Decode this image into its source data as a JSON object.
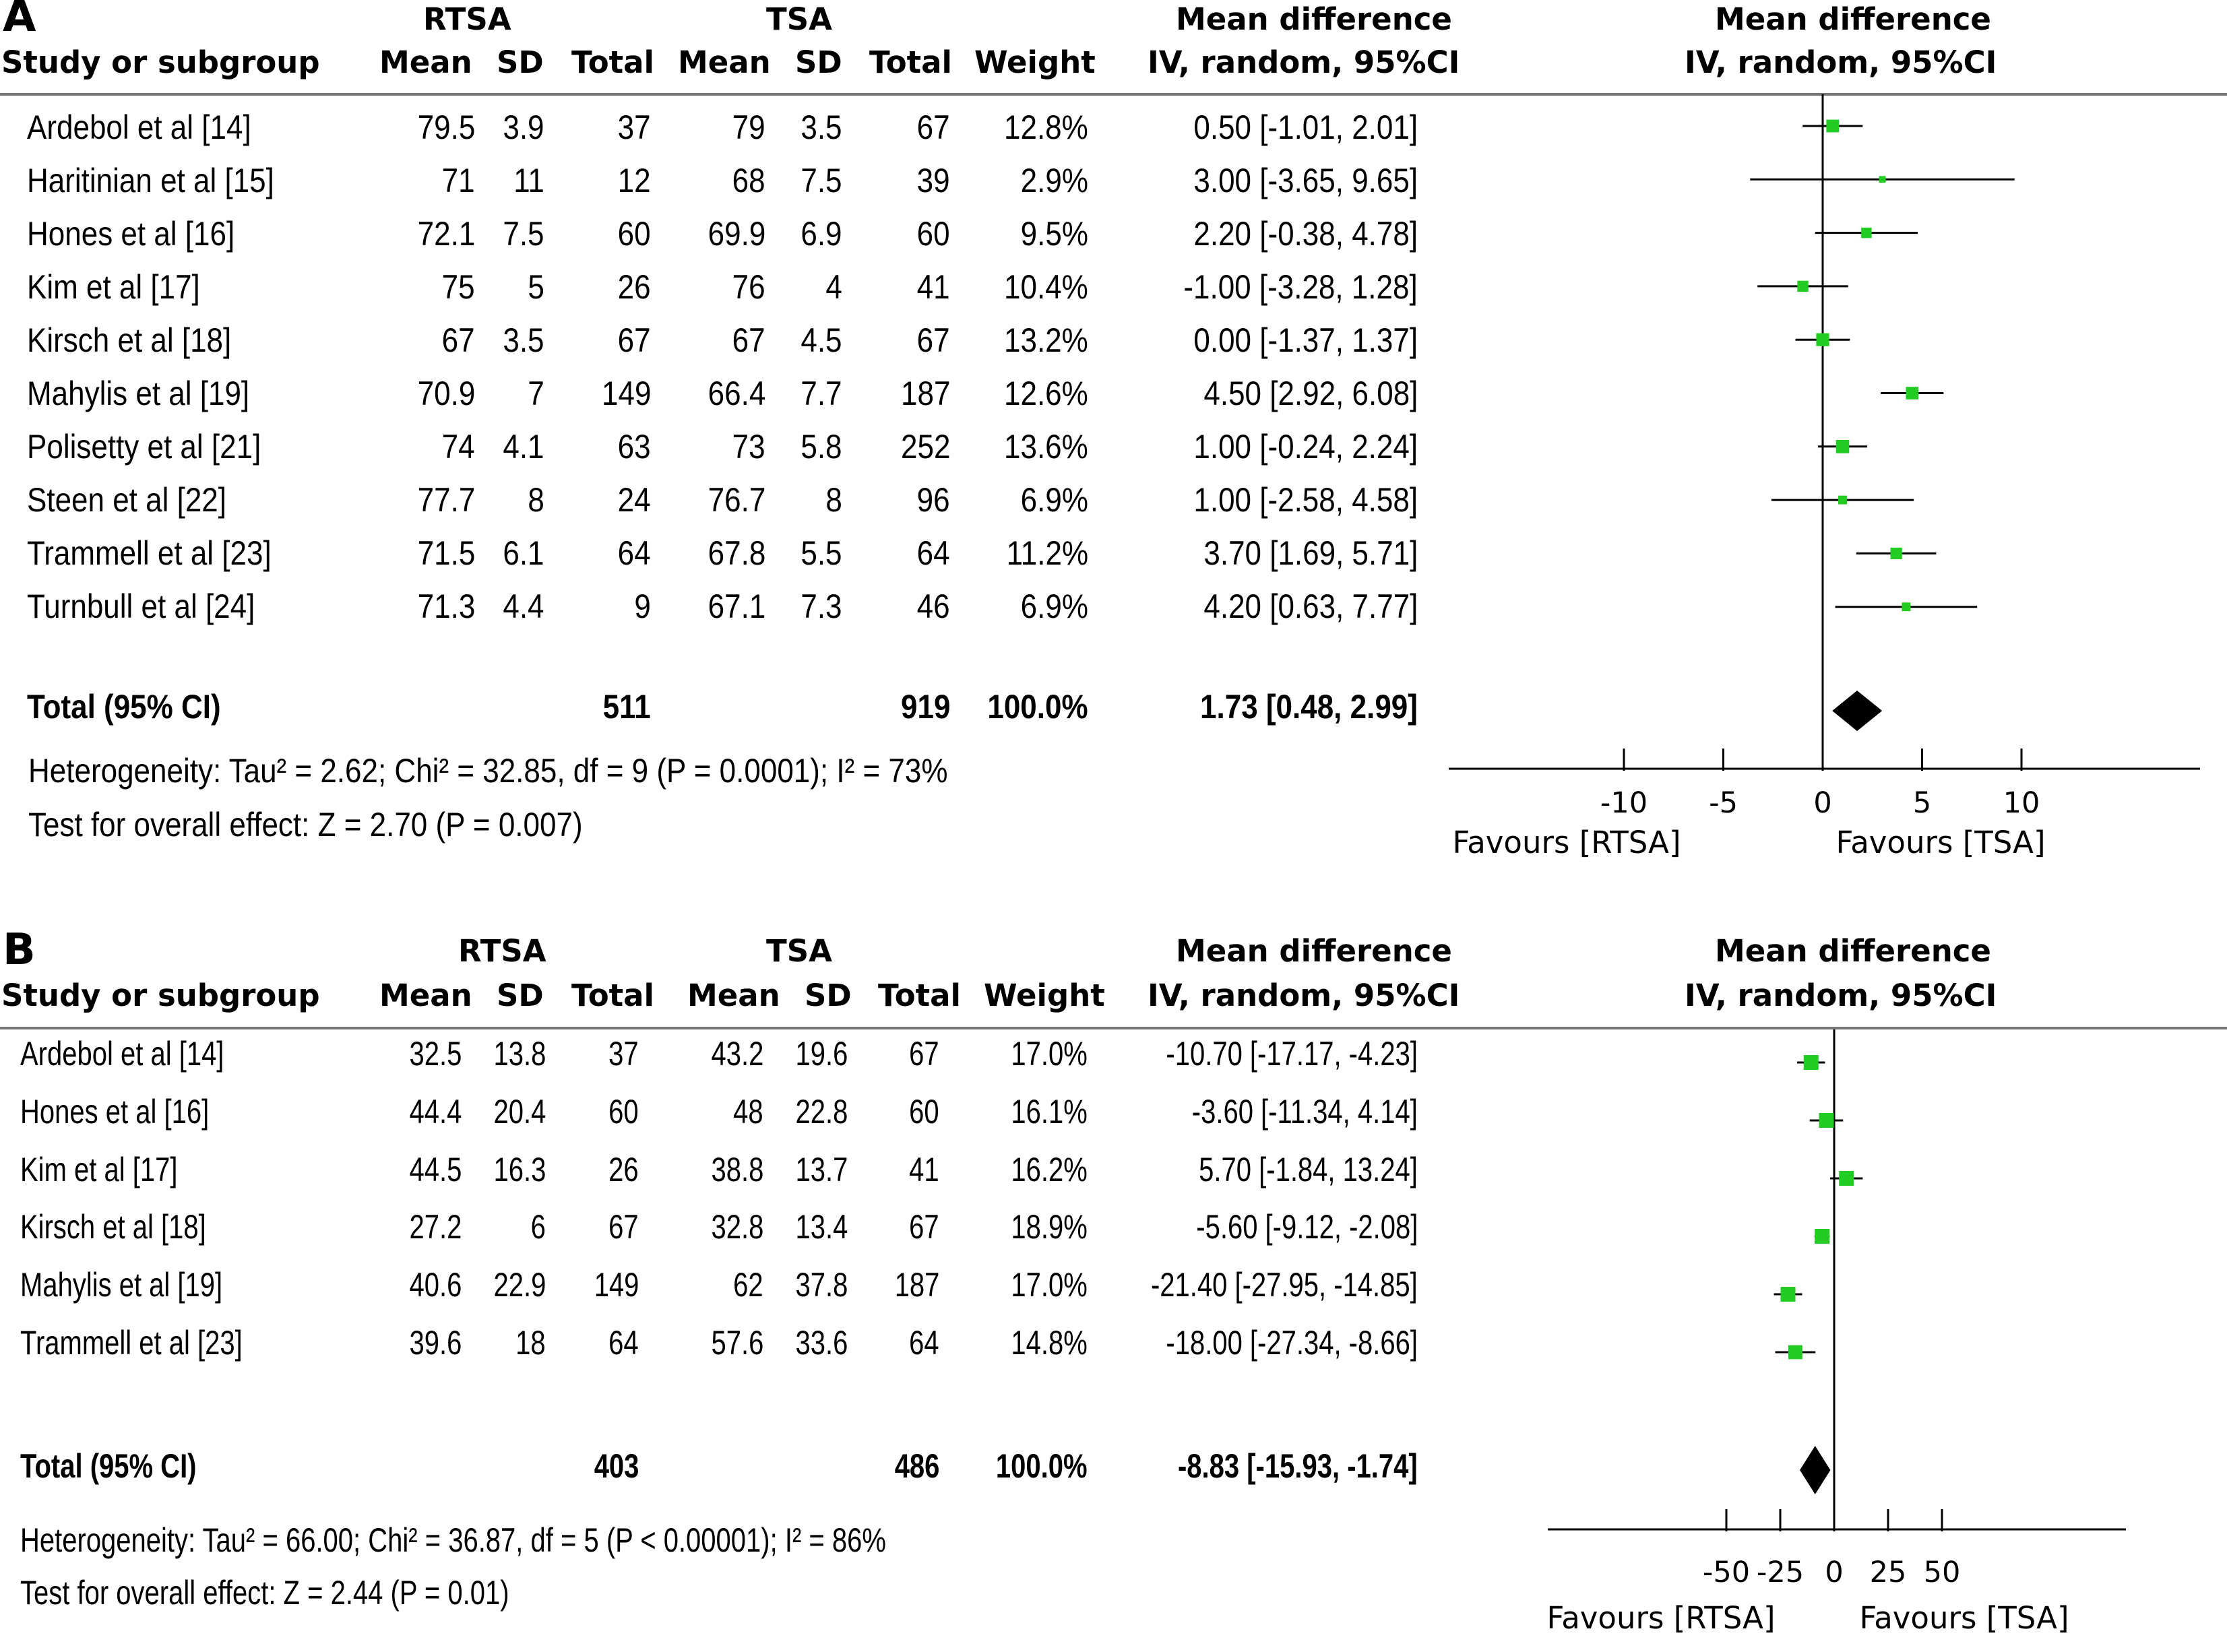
{
  "chart_data": [
    {
      "type": "forest",
      "panel_label": "A",
      "group1": "RTSA",
      "group2": "TSA",
      "columns": {
        "study": "Study or subgroup",
        "mean": "Mean",
        "sd": "SD",
        "total": "Total",
        "weight": "Weight",
        "effect_title": "Mean difference",
        "effect_method": "IV, random, 95%CI"
      },
      "studies": [
        {
          "name": "Ardebol et al  [14]",
          "m1": "79.5",
          "sd1": "3.9",
          "n1": "37",
          "m2": "79",
          "sd2": "3.5",
          "n2": "67",
          "weight": "12.8%",
          "ci": "0.50 [-1.01, 2.01]",
          "md": 0.5,
          "lo": -1.01,
          "hi": 2.01
        },
        {
          "name": "Haritinian et al [15]",
          "m1": "71",
          "sd1": "11",
          "n1": "12",
          "m2": "68",
          "sd2": "7.5",
          "n2": "39",
          "weight": "2.9%",
          "ci": "3.00 [-3.65, 9.65]",
          "md": 3.0,
          "lo": -3.65,
          "hi": 9.65
        },
        {
          "name": "Hones et al [16]",
          "m1": "72.1",
          "sd1": "7.5",
          "n1": "60",
          "m2": "69.9",
          "sd2": "6.9",
          "n2": "60",
          "weight": "9.5%",
          "ci": "2.20 [-0.38, 4.78]",
          "md": 2.2,
          "lo": -0.38,
          "hi": 4.78
        },
        {
          "name": "Kim et al [17]",
          "m1": "75",
          "sd1": "5",
          "n1": "26",
          "m2": "76",
          "sd2": "4",
          "n2": "41",
          "weight": "10.4%",
          "ci": "-1.00 [-3.28, 1.28]",
          "md": -1.0,
          "lo": -3.28,
          "hi": 1.28
        },
        {
          "name": "Kirsch et al [18]",
          "m1": "67",
          "sd1": "3.5",
          "n1": "67",
          "m2": "67",
          "sd2": "4.5",
          "n2": "67",
          "weight": "13.2%",
          "ci": "0.00 [-1.37, 1.37]",
          "md": 0.0,
          "lo": -1.37,
          "hi": 1.37
        },
        {
          "name": "Mahylis et al [19]",
          "m1": "70.9",
          "sd1": "7",
          "n1": "149",
          "m2": "66.4",
          "sd2": "7.7",
          "n2": "187",
          "weight": "12.6%",
          "ci": "4.50 [2.92, 6.08]",
          "md": 4.5,
          "lo": 2.92,
          "hi": 6.08
        },
        {
          "name": "Polisetty et al [21]",
          "m1": "74",
          "sd1": "4.1",
          "n1": "63",
          "m2": "73",
          "sd2": "5.8",
          "n2": "252",
          "weight": "13.6%",
          "ci": "1.00 [-0.24, 2.24]",
          "md": 1.0,
          "lo": -0.24,
          "hi": 2.24
        },
        {
          "name": "Steen et al [22]",
          "m1": "77.7",
          "sd1": "8",
          "n1": "24",
          "m2": "76.7",
          "sd2": "8",
          "n2": "96",
          "weight": "6.9%",
          "ci": "1.00 [-2.58, 4.58]",
          "md": 1.0,
          "lo": -2.58,
          "hi": 4.58
        },
        {
          "name": "Trammell et al [23]",
          "m1": "71.5",
          "sd1": "6.1",
          "n1": "64",
          "m2": "67.8",
          "sd2": "5.5",
          "n2": "64",
          "weight": "11.2%",
          "ci": "3.70 [1.69, 5.71]",
          "md": 3.7,
          "lo": 1.69,
          "hi": 5.71
        },
        {
          "name": "Turnbull et al [24]",
          "m1": "71.3",
          "sd1": "4.4",
          "n1": "9",
          "m2": "67.1",
          "sd2": "7.3",
          "n2": "46",
          "weight": "6.9%",
          "ci": "4.20 [0.63, 7.77]",
          "md": 4.2,
          "lo": 0.63,
          "hi": 7.77
        }
      ],
      "total": {
        "label": "Total (95% CI)",
        "n1": "511",
        "n2": "919",
        "weight": "100.0%",
        "ci": "1.73 [0.48, 2.99]",
        "md": 1.73,
        "lo": 0.48,
        "hi": 2.99
      },
      "heterogeneity": "Heterogeneity: Tau² = 2.62; Chi² = 32.85, df = 9 (P = 0.0001); I² = 73%",
      "overall_effect": "Test for overall effect: Z = 2.70 (P = 0.007)",
      "axis": {
        "min": -20,
        "max": 20,
        "ticks": [
          -10,
          -5,
          0,
          5,
          10
        ],
        "tick_labels": [
          "-10",
          "-5",
          "0",
          "5",
          "10"
        ]
      },
      "favours_left": "Favours [RTSA]",
      "favours_right": "Favours [TSA]",
      "marker_color": "#22cc22"
    },
    {
      "type": "forest",
      "panel_label": "B",
      "group1": "RTSA",
      "group2": "TSA",
      "columns": {
        "study": "Study or subgroup",
        "mean": "Mean",
        "sd": "SD",
        "total": "Total",
        "weight": "Weight",
        "effect_title": "Mean difference",
        "effect_method": "IV, random, 95%CI"
      },
      "studies": [
        {
          "name": "Ardebol et al  [14]",
          "m1": "32.5",
          "sd1": "13.8",
          "n1": "37",
          "m2": "43.2",
          "sd2": "19.6",
          "n2": "67",
          "weight": "17.0%",
          "ci": "-10.70 [-17.17, -4.23]",
          "md": -10.7,
          "lo": -17.17,
          "hi": -4.23
        },
        {
          "name": "Hones et al [16]",
          "m1": "44.4",
          "sd1": "20.4",
          "n1": "60",
          "m2": "48",
          "sd2": "22.8",
          "n2": "60",
          "weight": "16.1%",
          "ci": "-3.60 [-11.34, 4.14]",
          "md": -3.6,
          "lo": -11.34,
          "hi": 4.14
        },
        {
          "name": "Kim et al [17]",
          "m1": "44.5",
          "sd1": "16.3",
          "n1": "26",
          "m2": "38.8",
          "sd2": "13.7",
          "n2": "41",
          "weight": "16.2%",
          "ci": "5.70 [-1.84, 13.24]",
          "md": 5.7,
          "lo": -1.84,
          "hi": 13.24
        },
        {
          "name": "Kirsch et al [18]",
          "m1": "27.2",
          "sd1": "6",
          "n1": "67",
          "m2": "32.8",
          "sd2": "13.4",
          "n2": "67",
          "weight": "18.9%",
          "ci": "-5.60 [-9.12, -2.08]",
          "md": -5.6,
          "lo": -9.12,
          "hi": -2.08
        },
        {
          "name": "Mahylis et al [19]",
          "m1": "40.6",
          "sd1": "22.9",
          "n1": "149",
          "m2": "62",
          "sd2": "37.8",
          "n2": "187",
          "weight": "17.0%",
          "ci": "-21.40 [-27.95, -14.85]",
          "md": -21.4,
          "lo": -27.95,
          "hi": -14.85
        },
        {
          "name": "Trammell et al [23]",
          "m1": "39.6",
          "sd1": "18",
          "n1": "64",
          "m2": "57.6",
          "sd2": "33.6",
          "n2": "64",
          "weight": "14.8%",
          "ci": "-18.00 [-27.34, -8.66]",
          "md": -18.0,
          "lo": -27.34,
          "hi": -8.66
        }
      ],
      "total": {
        "label": "Total (95% CI)",
        "n1": "403",
        "n2": "486",
        "weight": "100.0%",
        "ci": "-8.83 [-15.93, -1.74]",
        "md": -8.83,
        "lo": -15.93,
        "hi": -1.74
      },
      "heterogeneity": "Heterogeneity: Tau² = 66.00; Chi² = 36.87, df = 5 (P < 0.00001); I² = 86%",
      "overall_effect": "Test for overall effect: Z = 2.44 (P = 0.01)",
      "axis": {
        "min": -66,
        "max": 66,
        "ticks": [
          -50,
          -25,
          0,
          25,
          50
        ],
        "tick_labels": [
          "-50",
          "-25",
          "0",
          "25",
          "50"
        ]
      },
      "favours_left": "Favours [RTSA]",
      "favours_right": "Favours [TSA]",
      "marker_color": "#22cc22"
    }
  ]
}
